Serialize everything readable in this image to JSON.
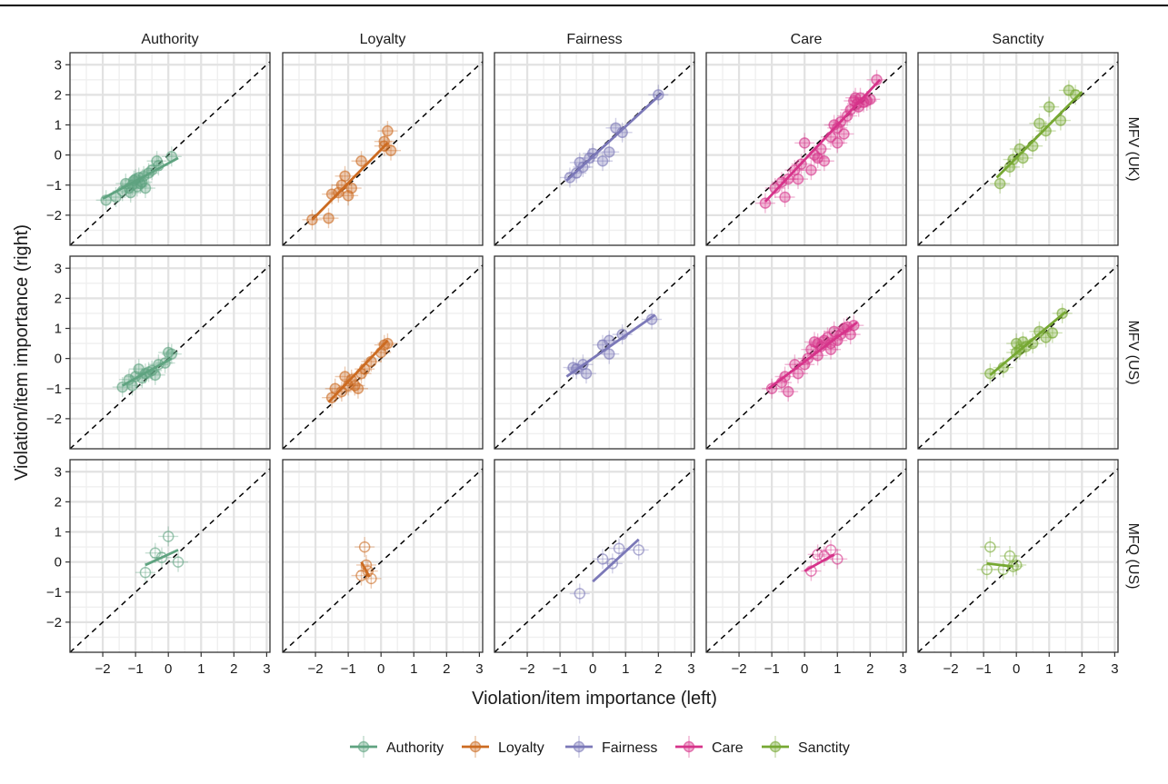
{
  "chart_data": {
    "type": "scatter",
    "xlabel": "Violation/item importance (left)",
    "ylabel": "Violation/item importance (right)",
    "xlim": [
      -3,
      3.1
    ],
    "ylim": [
      -3,
      3.4
    ],
    "ticks": [
      -2,
      -1,
      0,
      1,
      2,
      3
    ],
    "grid": true,
    "reference_line": "y = x (dashed)",
    "columns": [
      "Authority",
      "Loyalty",
      "Fairness",
      "Care",
      "Sanctity"
    ],
    "rows": [
      "MFV (UK)",
      "MFV (US)",
      "MFQ (US)"
    ],
    "legend_placement": "bottom",
    "legend": [
      {
        "name": "Authority",
        "color": "#5fa380"
      },
      {
        "name": "Loyalty",
        "color": "#cc6b21"
      },
      {
        "name": "Fairness",
        "color": "#7b78b8"
      },
      {
        "name": "Care",
        "color": "#d6338a"
      },
      {
        "name": "Sanctity",
        "color": "#76a832"
      }
    ],
    "panels": [
      {
        "row": "MFV (UK)",
        "col": "Authority",
        "line": [
          [
            -2.0,
            -1.45
          ],
          [
            0.3,
            -0.1
          ]
        ],
        "points": [
          [
            -1.9,
            -1.5
          ],
          [
            -1.6,
            -1.4
          ],
          [
            -1.4,
            -1.2
          ],
          [
            -1.2,
            -1.1
          ],
          [
            -1.1,
            -1.0
          ],
          [
            -1.0,
            -0.8
          ],
          [
            -0.9,
            -0.75
          ],
          [
            -0.8,
            -0.9
          ],
          [
            -1.05,
            -0.85
          ],
          [
            -0.85,
            -0.95
          ],
          [
            -1.15,
            -1.25
          ],
          [
            -0.95,
            -1.05
          ],
          [
            -0.75,
            -0.7
          ],
          [
            -0.6,
            -0.6
          ],
          [
            -0.5,
            -0.5
          ],
          [
            -0.3,
            -0.35
          ],
          [
            -0.35,
            -0.2
          ],
          [
            0.1,
            -0.05
          ],
          [
            -1.3,
            -0.95
          ],
          [
            -0.7,
            -1.1
          ]
        ]
      },
      {
        "row": "MFV (UK)",
        "col": "Loyalty",
        "line": [
          [
            -2.1,
            -2.15
          ],
          [
            0.2,
            0.4
          ]
        ],
        "points": [
          [
            -2.1,
            -2.15
          ],
          [
            -1.6,
            -2.1
          ],
          [
            -1.5,
            -1.3
          ],
          [
            -1.3,
            -1.25
          ],
          [
            -1.2,
            -1.0
          ],
          [
            -1.1,
            -0.7
          ],
          [
            -1.0,
            -1.35
          ],
          [
            -0.6,
            -0.2
          ],
          [
            -0.9,
            -1.1
          ],
          [
            0.1,
            0.3
          ],
          [
            0.2,
            0.8
          ],
          [
            0.3,
            0.15
          ],
          [
            0.1,
            0.45
          ]
        ]
      },
      {
        "row": "MFV (UK)",
        "col": "Fairness",
        "line": [
          [
            -0.8,
            -0.85
          ],
          [
            2.1,
            2.05
          ]
        ],
        "points": [
          [
            -0.7,
            -0.75
          ],
          [
            -0.5,
            -0.6
          ],
          [
            -0.3,
            -0.4
          ],
          [
            -0.1,
            -0.1
          ],
          [
            0.0,
            0.05
          ],
          [
            0.3,
            -0.2
          ],
          [
            0.5,
            0.1
          ],
          [
            0.7,
            0.9
          ],
          [
            0.9,
            0.75
          ],
          [
            2.0,
            2.0
          ],
          [
            -0.4,
            -0.25
          ]
        ]
      },
      {
        "row": "MFV (UK)",
        "col": "Care",
        "line": [
          [
            -1.2,
            -1.55
          ],
          [
            2.3,
            2.5
          ]
        ],
        "points": [
          [
            -1.2,
            -1.6
          ],
          [
            -0.9,
            -1.1
          ],
          [
            -0.7,
            -0.9
          ],
          [
            -0.6,
            -1.4
          ],
          [
            -0.5,
            -0.8
          ],
          [
            -0.3,
            -0.5
          ],
          [
            -0.1,
            -0.3
          ],
          [
            0.0,
            0.4
          ],
          [
            0.2,
            -0.5
          ],
          [
            0.3,
            0.0
          ],
          [
            0.5,
            0.2
          ],
          [
            0.6,
            -0.2
          ],
          [
            0.8,
            0.6
          ],
          [
            1.0,
            0.9
          ],
          [
            1.1,
            1.1
          ],
          [
            1.2,
            0.7
          ],
          [
            1.3,
            1.3
          ],
          [
            1.4,
            1.5
          ],
          [
            1.5,
            1.8
          ],
          [
            1.6,
            1.7
          ],
          [
            1.55,
            1.9
          ],
          [
            1.65,
            1.6
          ],
          [
            1.7,
            1.9
          ],
          [
            1.8,
            1.75
          ],
          [
            1.9,
            1.8
          ],
          [
            2.0,
            1.85
          ],
          [
            2.2,
            2.5
          ],
          [
            0.9,
            1.0
          ],
          [
            1.0,
            0.4
          ],
          [
            0.4,
            -0.1
          ],
          [
            -0.2,
            -0.8
          ]
        ]
      },
      {
        "row": "MFV (UK)",
        "col": "Sanctity",
        "line": [
          [
            -0.6,
            -0.75
          ],
          [
            2.0,
            2.1
          ]
        ],
        "points": [
          [
            -0.5,
            -0.95
          ],
          [
            -0.2,
            -0.4
          ],
          [
            0.1,
            0.2
          ],
          [
            0.2,
            -0.1
          ],
          [
            0.5,
            0.3
          ],
          [
            0.7,
            1.05
          ],
          [
            0.9,
            0.8
          ],
          [
            1.0,
            1.6
          ],
          [
            1.35,
            1.15
          ],
          [
            1.6,
            2.15
          ],
          [
            1.8,
            2.0
          ],
          [
            -0.1,
            -0.15
          ]
        ]
      },
      {
        "row": "MFV (US)",
        "col": "Authority",
        "line": [
          [
            -1.4,
            -0.9
          ],
          [
            0.1,
            0.0
          ]
        ],
        "points": [
          [
            -1.4,
            -0.95
          ],
          [
            -1.2,
            -0.7
          ],
          [
            -1.0,
            -0.6
          ],
          [
            -0.9,
            -0.35
          ],
          [
            -0.8,
            -0.65
          ],
          [
            -0.7,
            -0.5
          ],
          [
            -0.6,
            -0.45
          ],
          [
            -0.5,
            -0.4
          ],
          [
            -0.4,
            -0.55
          ],
          [
            -0.3,
            -0.2
          ],
          [
            -0.1,
            -0.15
          ],
          [
            0.0,
            0.2
          ],
          [
            0.1,
            0.15
          ],
          [
            -1.1,
            -0.9
          ]
        ]
      },
      {
        "row": "MFV (US)",
        "col": "Loyalty",
        "line": [
          [
            -1.6,
            -1.45
          ],
          [
            0.2,
            0.6
          ]
        ],
        "points": [
          [
            -1.5,
            -1.3
          ],
          [
            -1.4,
            -1.0
          ],
          [
            -1.2,
            -1.1
          ],
          [
            -1.0,
            -0.9
          ],
          [
            -0.9,
            -0.7
          ],
          [
            -0.8,
            -0.9
          ],
          [
            -0.7,
            -1.0
          ],
          [
            -0.6,
            -0.5
          ],
          [
            -0.5,
            -0.35
          ],
          [
            -0.3,
            -0.1
          ],
          [
            0.0,
            0.2
          ],
          [
            0.1,
            0.45
          ],
          [
            0.2,
            0.5
          ],
          [
            -1.1,
            -0.6
          ]
        ]
      },
      {
        "row": "MFV (US)",
        "col": "Fairness",
        "line": [
          [
            -0.8,
            -0.6
          ],
          [
            1.9,
            1.45
          ]
        ],
        "points": [
          [
            -0.6,
            -0.3
          ],
          [
            -0.5,
            -0.35
          ],
          [
            -0.2,
            -0.5
          ],
          [
            0.3,
            0.45
          ],
          [
            0.5,
            0.6
          ],
          [
            0.5,
            0.15
          ],
          [
            0.9,
            0.8
          ],
          [
            1.8,
            1.3
          ],
          [
            -0.3,
            -0.2
          ]
        ]
      },
      {
        "row": "MFV (US)",
        "col": "Care",
        "line": [
          [
            -1.1,
            -1.0
          ],
          [
            1.6,
            1.2
          ]
        ],
        "points": [
          [
            -1.0,
            -1.0
          ],
          [
            -0.7,
            -0.8
          ],
          [
            -0.6,
            -0.6
          ],
          [
            -0.5,
            -1.1
          ],
          [
            -0.3,
            -0.2
          ],
          [
            -0.2,
            -0.5
          ],
          [
            0.0,
            -0.2
          ],
          [
            0.1,
            0.0
          ],
          [
            0.2,
            0.3
          ],
          [
            0.3,
            0.55
          ],
          [
            0.4,
            0.5
          ],
          [
            0.5,
            0.4
          ],
          [
            0.6,
            0.6
          ],
          [
            0.7,
            0.7
          ],
          [
            0.8,
            0.5
          ],
          [
            0.9,
            0.9
          ],
          [
            1.0,
            0.6
          ],
          [
            1.1,
            0.8
          ],
          [
            1.2,
            1.0
          ],
          [
            1.3,
            1.05
          ],
          [
            1.4,
            0.8
          ],
          [
            1.5,
            1.1
          ],
          [
            0.4,
            0.1
          ],
          [
            0.8,
            0.3
          ]
        ]
      },
      {
        "row": "MFV (US)",
        "col": "Sanctity",
        "line": [
          [
            -0.8,
            -0.55
          ],
          [
            1.5,
            1.55
          ]
        ],
        "points": [
          [
            -0.8,
            -0.5
          ],
          [
            -0.4,
            -0.3
          ],
          [
            0.0,
            0.5
          ],
          [
            0.1,
            0.3
          ],
          [
            0.2,
            0.55
          ],
          [
            0.3,
            0.4
          ],
          [
            0.5,
            0.5
          ],
          [
            0.7,
            0.9
          ],
          [
            0.9,
            0.7
          ],
          [
            1.1,
            0.85
          ],
          [
            1.4,
            1.5
          ],
          [
            0.0,
            0.2
          ]
        ]
      },
      {
        "row": "MFQ (US)",
        "col": "Authority",
        "line": [
          [
            -0.7,
            -0.1
          ],
          [
            0.3,
            0.4
          ]
        ],
        "points": [
          [
            -0.7,
            -0.35
          ],
          [
            -0.4,
            0.3
          ],
          [
            0.0,
            0.85
          ],
          [
            0.3,
            0.0
          ],
          [
            -0.2,
            0.15
          ]
        ]
      },
      {
        "row": "MFQ (US)",
        "col": "Loyalty",
        "line": [
          [
            -0.6,
            0.0
          ],
          [
            -0.35,
            -0.5
          ]
        ],
        "points": [
          [
            -0.5,
            0.5
          ],
          [
            -0.6,
            -0.45
          ],
          [
            -0.45,
            -0.1
          ],
          [
            -0.3,
            -0.55
          ],
          [
            -0.4,
            -0.3
          ]
        ]
      },
      {
        "row": "MFQ (US)",
        "col": "Fairness",
        "line": [
          [
            0.0,
            -0.65
          ],
          [
            1.4,
            0.75
          ]
        ],
        "points": [
          [
            -0.4,
            -1.05
          ],
          [
            0.3,
            0.1
          ],
          [
            0.6,
            -0.05
          ],
          [
            0.8,
            0.45
          ],
          [
            1.4,
            0.4
          ]
        ]
      },
      {
        "row": "MFQ (US)",
        "col": "Care",
        "line": [
          [
            0.0,
            -0.3
          ],
          [
            0.9,
            0.25
          ]
        ],
        "points": [
          [
            0.2,
            -0.3
          ],
          [
            0.4,
            0.25
          ],
          [
            0.6,
            0.2
          ],
          [
            0.8,
            0.4
          ],
          [
            1.0,
            0.1
          ]
        ]
      },
      {
        "row": "MFQ (US)",
        "col": "Sanctity",
        "line": [
          [
            -0.9,
            -0.05
          ],
          [
            -0.1,
            -0.15
          ]
        ],
        "points": [
          [
            -0.8,
            0.5
          ],
          [
            -0.9,
            -0.25
          ],
          [
            -0.4,
            -0.25
          ],
          [
            -0.2,
            0.2
          ],
          [
            0.0,
            -0.1
          ],
          [
            -0.1,
            -0.15
          ]
        ]
      }
    ]
  }
}
